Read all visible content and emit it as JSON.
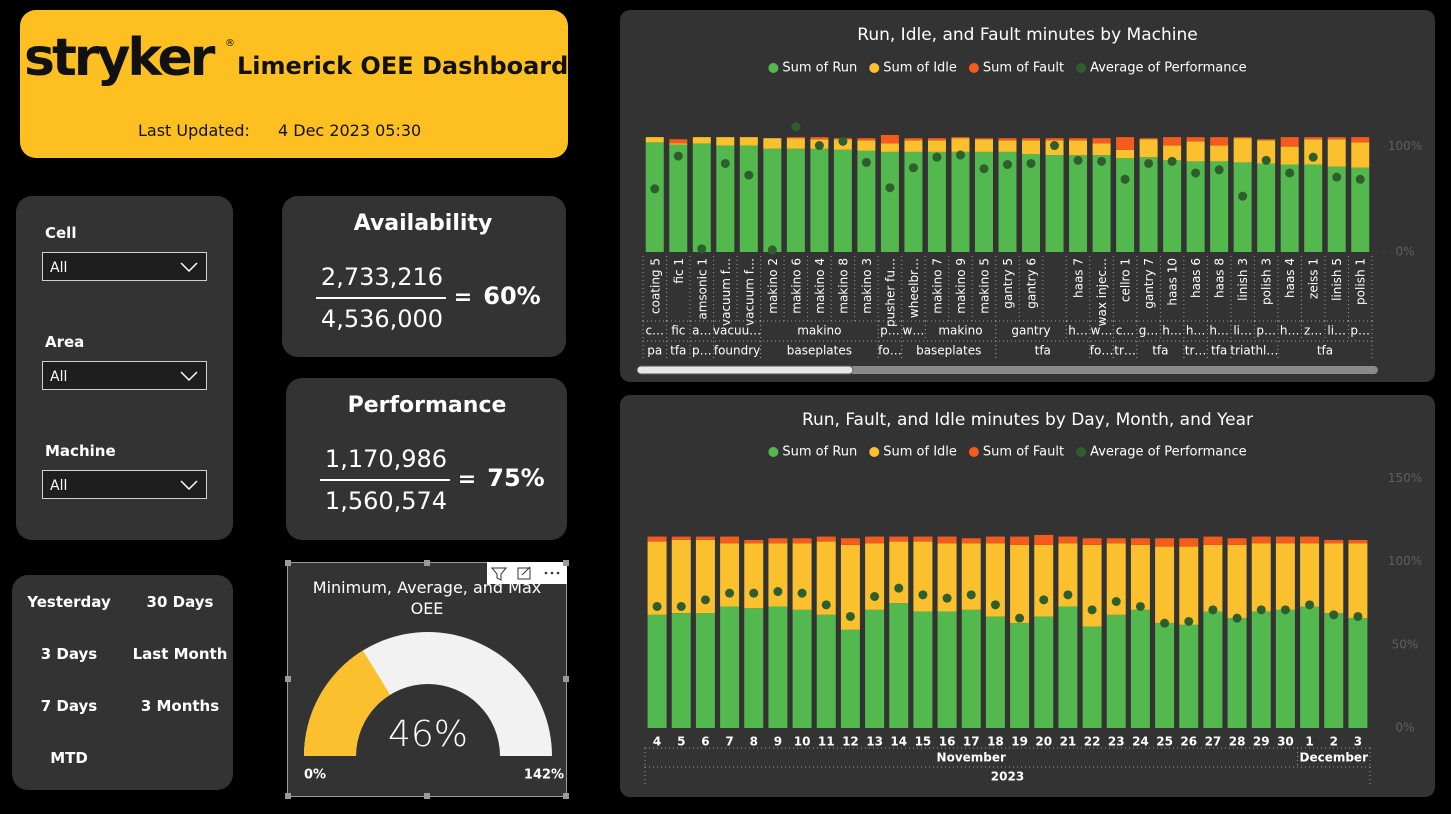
{
  "header": {
    "logo": "stryker",
    "logo_mark": "®",
    "title": "Limerick OEE Dashboard",
    "updated_label": "Last Updated:",
    "updated_value": "4 Dec 2023 05:30"
  },
  "filters": [
    {
      "label": "Cell",
      "value": "All"
    },
    {
      "label": "Area",
      "value": "All"
    },
    {
      "label": "Machine",
      "value": "All"
    }
  ],
  "date_buttons": [
    "Yesterday",
    "30 Days",
    "3 Days",
    "Last Month",
    "7 Days",
    "3 Months",
    "MTD"
  ],
  "cards": [
    {
      "title": "Availability",
      "numerator": "2,733,216",
      "denominator": "4,536,000",
      "operator": "=",
      "result": "60%"
    },
    {
      "title": "Performance",
      "numerator": "1,170,986",
      "denominator": "1,560,574",
      "operator": "=",
      "result": "75%"
    }
  ],
  "chart_data": [
    {
      "type": "bar",
      "stacked": true,
      "title": "Run, Idle, and Fault minutes by Machine",
      "categories": [
        "coating 5",
        "fic 1",
        "amsonic 1",
        "vacuum f…",
        "vacuum f…",
        "makino 2",
        "makino 6",
        "makino 4",
        "makino 8",
        "makino 3",
        "pusher fu…",
        "wheelbr…",
        "makino 7",
        "makino 9",
        "makino 5",
        "gantry 5",
        "gantry 6",
        null,
        "haas 7",
        "wax injec…",
        "cellro 1",
        "gantry 7",
        "haas 10",
        "haas 6",
        "haas 8",
        "linish 3",
        "polish 3",
        "haas 4",
        "zeiss 1",
        "linish 5",
        "polish 1"
      ],
      "category_groups": [
        [
          "c…",
          "fic",
          "a…",
          "vacuu…",
          null,
          "makino",
          null,
          null,
          null,
          null,
          "p…",
          "w…",
          "makino",
          null,
          null,
          "gantry",
          null,
          null,
          "h…",
          "w…",
          "c…",
          "g…",
          "h…",
          "h…",
          "h…",
          "li…",
          "p…",
          "h…",
          "z…",
          "li…",
          "p…"
        ],
        [
          "pa",
          "tfa",
          "p…",
          "foundry",
          null,
          "baseplates",
          null,
          null,
          null,
          null,
          "fo…",
          "baseplates",
          null,
          null,
          null,
          "tfa",
          null,
          null,
          null,
          "fo…",
          "tr…",
          "tfa",
          null,
          "tr…",
          "tfa",
          "triathl…",
          null,
          "tfa",
          null,
          null,
          null
        ]
      ],
      "series": [
        {
          "name": "Sum of Run",
          "color": "#53b84d",
          "values": [
            104,
            102,
            103,
            101,
            101,
            98,
            98,
            98,
            97,
            96,
            95,
            95,
            95,
            95,
            95,
            95,
            93,
            92,
            92,
            92,
            89,
            90,
            87,
            86,
            86,
            85,
            84,
            83,
            83,
            81,
            80
          ]
        },
        {
          "name": "Sum of Idle",
          "color": "#fbc02d",
          "values": [
            5,
            1,
            6,
            8,
            8,
            10,
            10,
            9,
            10,
            10,
            8,
            11,
            11,
            13,
            12,
            11,
            13,
            14,
            14,
            11,
            8,
            17,
            14,
            19,
            15,
            23,
            22,
            17,
            24,
            26,
            24
          ]
        },
        {
          "name": "Sum of Fault",
          "color": "#f45b1d",
          "values": [
            0,
            4,
            0,
            0,
            0,
            0,
            1,
            2,
            1,
            2,
            8,
            2,
            2,
            1,
            1,
            2,
            2,
            2,
            2,
            5,
            12,
            1,
            8,
            4,
            8,
            1,
            1,
            9,
            2,
            2,
            5
          ]
        },
        {
          "name": "Average of Performance",
          "color": "#2e5e2e",
          "type": "scatter",
          "values": [
            60,
            91,
            3,
            84,
            73,
            2,
            119,
            101,
            105,
            85,
            61,
            80,
            90,
            92,
            79,
            83,
            84,
            101,
            87,
            86,
            69,
            84,
            86,
            75,
            78,
            53,
            87,
            75,
            90,
            71,
            69
          ]
        }
      ],
      "ylim": [
        0,
        130
      ],
      "yticks": [
        {
          "value": 0,
          "label": "0%"
        },
        {
          "value": 100,
          "label": "100%"
        }
      ],
      "grid": false,
      "legend": "top"
    },
    {
      "type": "bar",
      "stacked": true,
      "title": "Run, Fault, and Idle minutes by Day, Month, and Year",
      "categories": [
        "4",
        "5",
        "6",
        "7",
        "8",
        "9",
        "10",
        "11",
        "12",
        "13",
        "14",
        "15",
        "16",
        "17",
        "18",
        "19",
        "20",
        "21",
        "22",
        "23",
        "24",
        "25",
        "26",
        "27",
        "28",
        "29",
        "30",
        "1",
        "2",
        "3"
      ],
      "category_groups": [
        [
          "November",
          null,
          null,
          null,
          null,
          null,
          null,
          null,
          null,
          null,
          null,
          null,
          null,
          null,
          null,
          null,
          null,
          null,
          null,
          null,
          null,
          null,
          null,
          null,
          null,
          null,
          null,
          "December",
          null,
          null
        ],
        [
          "2023",
          null,
          null,
          null,
          null,
          null,
          null,
          null,
          null,
          null,
          null,
          null,
          null,
          null,
          null,
          null,
          null,
          null,
          null,
          null,
          null,
          null,
          null,
          null,
          null,
          null,
          null,
          null,
          null,
          null
        ]
      ],
      "series": [
        {
          "name": "Sum of Run",
          "color": "#53b84d",
          "values": [
            68,
            69,
            69,
            73,
            72,
            73,
            71,
            68,
            59,
            71,
            75,
            70,
            70,
            71,
            67,
            63,
            67,
            73,
            61,
            68,
            71,
            63,
            62,
            70,
            66,
            70,
            71,
            73,
            69,
            66
          ]
        },
        {
          "name": "Sum of Idle",
          "color": "#fbc02d",
          "values": [
            44,
            44,
            44,
            38,
            39,
            38,
            40,
            44,
            51,
            40,
            37,
            42,
            41,
            40,
            44,
            47,
            43,
            38,
            49,
            43,
            39,
            46,
            47,
            40,
            44,
            41,
            40,
            38,
            42,
            45
          ]
        },
        {
          "name": "Sum of Fault",
          "color": "#f45b1d",
          "values": [
            3,
            2,
            2,
            4,
            2,
            3,
            3,
            3,
            4,
            4,
            3,
            3,
            4,
            3,
            4,
            5,
            6,
            4,
            4,
            3,
            4,
            5,
            5,
            5,
            4,
            4,
            4,
            4,
            2,
            2
          ]
        },
        {
          "name": "Average of Performance",
          "color": "#2e5e2e",
          "type": "scatter",
          "values": [
            73,
            73,
            77,
            81,
            81,
            82,
            81,
            74,
            67,
            79,
            84,
            80,
            78,
            80,
            74,
            66,
            77,
            80,
            71,
            76,
            73,
            63,
            64,
            71,
            66,
            71,
            71,
            74,
            68,
            67
          ]
        }
      ],
      "ylim": [
        0,
        155
      ],
      "yticks": [
        {
          "value": 0,
          "label": "0%"
        },
        {
          "value": 50,
          "label": "50%"
        },
        {
          "value": 100,
          "label": "100%"
        },
        {
          "value": 150,
          "label": "150%"
        }
      ],
      "grid": false,
      "legend": "top"
    },
    {
      "type": "gauge",
      "title": "Minimum, Average, and Max OEE",
      "values": [
        46
      ],
      "value_labels": [
        "46%"
      ],
      "color": "#fbc02d",
      "ylim": [
        0,
        142
      ],
      "yticks": [
        {
          "value": 0,
          "label": "0%"
        },
        {
          "value": 142,
          "label": "142%"
        }
      ]
    }
  ]
}
